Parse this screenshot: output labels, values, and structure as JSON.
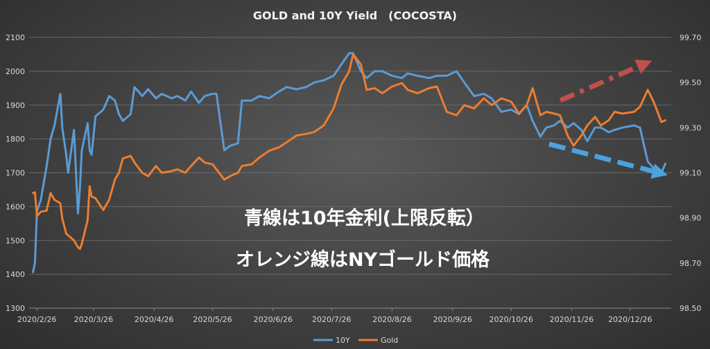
{
  "chart_data": {
    "type": "line",
    "title": "GOLD and 10Y Yield　(COCOSTA)",
    "xlabel": "",
    "ylabel": "",
    "x_ticks": [
      "2020/2/26",
      "2020/3/26",
      "2020/4/26",
      "2020/5/26",
      "2020/6/26",
      "2020/7/26",
      "2020/8/26",
      "2020/9/26",
      "2020/10/26",
      "2020/11/26",
      "2020/12/26"
    ],
    "y_left": {
      "ylim": [
        1300,
        2100
      ],
      "ticks": [
        "1300",
        "1400",
        "1500",
        "1600",
        "1700",
        "1800",
        "1900",
        "2000",
        "2100"
      ]
    },
    "y_right": {
      "ylim": [
        98.5,
        99.7
      ],
      "ticks": [
        "98.50",
        "98.70",
        "98.90",
        "99.10",
        "99.30",
        "99.50",
        "99.70"
      ]
    },
    "grid": "horizontal",
    "legend_position": "bottom",
    "series": [
      {
        "name": "10Y",
        "axis": "right",
        "color": "#5b9bd5",
        "points": [
          [
            "2020-02-24",
            98.66
          ],
          [
            "2020-02-25",
            98.7
          ],
          [
            "2020-02-26",
            98.93
          ],
          [
            "2020-02-28",
            98.98
          ],
          [
            "2020-03-02",
            99.13
          ],
          [
            "2020-03-04",
            99.25
          ],
          [
            "2020-03-06",
            99.31
          ],
          [
            "2020-03-09",
            99.45
          ],
          [
            "2020-03-10",
            99.3
          ],
          [
            "2020-03-12",
            99.18
          ],
          [
            "2020-03-13",
            99.1
          ],
          [
            "2020-03-16",
            99.29
          ],
          [
            "2020-03-18",
            98.92
          ],
          [
            "2020-03-19",
            99.03
          ],
          [
            "2020-03-20",
            99.2
          ],
          [
            "2020-03-23",
            99.32
          ],
          [
            "2020-03-24",
            99.2
          ],
          [
            "2020-03-25",
            99.18
          ],
          [
            "2020-03-27",
            99.35
          ],
          [
            "2020-03-31",
            99.38
          ],
          [
            "2020-04-03",
            99.44
          ],
          [
            "2020-04-06",
            99.42
          ],
          [
            "2020-04-08",
            99.36
          ],
          [
            "2020-04-10",
            99.33
          ],
          [
            "2020-04-14",
            99.36
          ],
          [
            "2020-04-16",
            99.48
          ],
          [
            "2020-04-20",
            99.44
          ],
          [
            "2020-04-23",
            99.47
          ],
          [
            "2020-04-27",
            99.43
          ],
          [
            "2020-04-30",
            99.45
          ],
          [
            "2020-05-05",
            99.43
          ],
          [
            "2020-05-08",
            99.44
          ],
          [
            "2020-05-12",
            99.42
          ],
          [
            "2020-05-15",
            99.46
          ],
          [
            "2020-05-19",
            99.41
          ],
          [
            "2020-05-22",
            99.44
          ],
          [
            "2020-05-26",
            99.45
          ],
          [
            "2020-05-28",
            99.45
          ],
          [
            "2020-06-01",
            99.2
          ],
          [
            "2020-06-04",
            99.22
          ],
          [
            "2020-06-08",
            99.23
          ],
          [
            "2020-06-10",
            99.42
          ],
          [
            "2020-06-15",
            99.42
          ],
          [
            "2020-06-19",
            99.44
          ],
          [
            "2020-06-24",
            99.43
          ],
          [
            "2020-06-29",
            99.46
          ],
          [
            "2020-07-03",
            99.48
          ],
          [
            "2020-07-08",
            99.47
          ],
          [
            "2020-07-13",
            99.48
          ],
          [
            "2020-07-17",
            99.5
          ],
          [
            "2020-07-22",
            99.51
          ],
          [
            "2020-07-27",
            99.53
          ],
          [
            "2020-07-31",
            99.58
          ],
          [
            "2020-08-04",
            99.63
          ],
          [
            "2020-08-06",
            99.63
          ],
          [
            "2020-08-10",
            99.55
          ],
          [
            "2020-08-13",
            99.52
          ],
          [
            "2020-08-17",
            99.55
          ],
          [
            "2020-08-21",
            99.55
          ],
          [
            "2020-08-26",
            99.53
          ],
          [
            "2020-08-31",
            99.52
          ],
          [
            "2020-09-03",
            99.54
          ],
          [
            "2020-09-08",
            99.53
          ],
          [
            "2020-09-14",
            99.52
          ],
          [
            "2020-09-18",
            99.53
          ],
          [
            "2020-09-23",
            99.53
          ],
          [
            "2020-09-28",
            99.55
          ],
          [
            "2020-10-02",
            99.5
          ],
          [
            "2020-10-07",
            99.44
          ],
          [
            "2020-10-12",
            99.45
          ],
          [
            "2020-10-16",
            99.43
          ],
          [
            "2020-10-21",
            99.37
          ],
          [
            "2020-10-26",
            99.38
          ],
          [
            "2020-10-30",
            99.36
          ],
          [
            "2020-11-03",
            99.4
          ],
          [
            "2020-11-06",
            99.33
          ],
          [
            "2020-11-10",
            99.26
          ],
          [
            "2020-11-13",
            99.3
          ],
          [
            "2020-11-17",
            99.31
          ],
          [
            "2020-11-20",
            99.33
          ],
          [
            "2020-11-24",
            99.3
          ],
          [
            "2020-11-27",
            99.32
          ],
          [
            "2020-12-01",
            99.29
          ],
          [
            "2020-12-04",
            99.24
          ],
          [
            "2020-12-08",
            99.3
          ],
          [
            "2020-12-11",
            99.3
          ],
          [
            "2020-12-15",
            99.28
          ],
          [
            "2020-12-18",
            99.29
          ],
          [
            "2020-12-22",
            99.3
          ],
          [
            "2020-12-28",
            99.31
          ],
          [
            "2020-12-31",
            99.3
          ],
          [
            "2021-01-04",
            99.15
          ],
          [
            "2021-01-07",
            99.12
          ],
          [
            "2021-01-11",
            99.1
          ],
          [
            "2021-01-13",
            99.14
          ]
        ]
      },
      {
        "name": "Gold",
        "axis": "left",
        "color": "#ed7d31",
        "points": [
          [
            "2020-02-24",
            1640
          ],
          [
            "2020-02-25",
            1642
          ],
          [
            "2020-02-26",
            1572
          ],
          [
            "2020-02-28",
            1585
          ],
          [
            "2020-03-02",
            1588
          ],
          [
            "2020-03-04",
            1640
          ],
          [
            "2020-03-06",
            1620
          ],
          [
            "2020-03-09",
            1610
          ],
          [
            "2020-03-10",
            1565
          ],
          [
            "2020-03-12",
            1520
          ],
          [
            "2020-03-13",
            1515
          ],
          [
            "2020-03-16",
            1500
          ],
          [
            "2020-03-18",
            1480
          ],
          [
            "2020-03-19",
            1475
          ],
          [
            "2020-03-20",
            1490
          ],
          [
            "2020-03-23",
            1560
          ],
          [
            "2020-03-24",
            1660
          ],
          [
            "2020-03-25",
            1630
          ],
          [
            "2020-03-27",
            1625
          ],
          [
            "2020-03-31",
            1590
          ],
          [
            "2020-04-03",
            1620
          ],
          [
            "2020-04-06",
            1680
          ],
          [
            "2020-04-08",
            1700
          ],
          [
            "2020-04-10",
            1742
          ],
          [
            "2020-04-14",
            1750
          ],
          [
            "2020-04-16",
            1730
          ],
          [
            "2020-04-20",
            1700
          ],
          [
            "2020-04-23",
            1690
          ],
          [
            "2020-04-27",
            1720
          ],
          [
            "2020-04-30",
            1700
          ],
          [
            "2020-05-05",
            1705
          ],
          [
            "2020-05-08",
            1710
          ],
          [
            "2020-05-12",
            1700
          ],
          [
            "2020-05-15",
            1720
          ],
          [
            "2020-05-19",
            1745
          ],
          [
            "2020-05-22",
            1730
          ],
          [
            "2020-05-26",
            1725
          ],
          [
            "2020-05-28",
            1710
          ],
          [
            "2020-06-01",
            1680
          ],
          [
            "2020-06-04",
            1690
          ],
          [
            "2020-06-08",
            1700
          ],
          [
            "2020-06-10",
            1720
          ],
          [
            "2020-06-15",
            1725
          ],
          [
            "2020-06-19",
            1745
          ],
          [
            "2020-06-24",
            1765
          ],
          [
            "2020-06-29",
            1775
          ],
          [
            "2020-07-03",
            1790
          ],
          [
            "2020-07-08",
            1810
          ],
          [
            "2020-07-13",
            1815
          ],
          [
            "2020-07-17",
            1820
          ],
          [
            "2020-07-22",
            1840
          ],
          [
            "2020-07-27",
            1890
          ],
          [
            "2020-07-31",
            1960
          ],
          [
            "2020-08-04",
            2000
          ],
          [
            "2020-08-06",
            2050
          ],
          [
            "2020-08-10",
            2020
          ],
          [
            "2020-08-13",
            1945
          ],
          [
            "2020-08-17",
            1950
          ],
          [
            "2020-08-21",
            1935
          ],
          [
            "2020-08-26",
            1955
          ],
          [
            "2020-08-31",
            1965
          ],
          [
            "2020-09-03",
            1945
          ],
          [
            "2020-09-08",
            1935
          ],
          [
            "2020-09-14",
            1950
          ],
          [
            "2020-09-18",
            1955
          ],
          [
            "2020-09-23",
            1880
          ],
          [
            "2020-09-28",
            1870
          ],
          [
            "2020-10-02",
            1900
          ],
          [
            "2020-10-07",
            1890
          ],
          [
            "2020-10-12",
            1920
          ],
          [
            "2020-10-16",
            1900
          ],
          [
            "2020-10-21",
            1920
          ],
          [
            "2020-10-26",
            1910
          ],
          [
            "2020-10-30",
            1875
          ],
          [
            "2020-11-03",
            1900
          ],
          [
            "2020-11-06",
            1950
          ],
          [
            "2020-11-10",
            1870
          ],
          [
            "2020-11-13",
            1880
          ],
          [
            "2020-11-17",
            1875
          ],
          [
            "2020-11-20",
            1870
          ],
          [
            "2020-11-24",
            1810
          ],
          [
            "2020-11-27",
            1780
          ],
          [
            "2020-12-01",
            1810
          ],
          [
            "2020-12-04",
            1840
          ],
          [
            "2020-12-08",
            1865
          ],
          [
            "2020-12-11",
            1840
          ],
          [
            "2020-12-15",
            1855
          ],
          [
            "2020-12-18",
            1880
          ],
          [
            "2020-12-22",
            1875
          ],
          [
            "2020-12-28",
            1880
          ],
          [
            "2020-12-31",
            1895
          ],
          [
            "2021-01-04",
            1945
          ],
          [
            "2021-01-07",
            1910
          ],
          [
            "2021-01-11",
            1850
          ],
          [
            "2021-01-13",
            1855
          ]
        ]
      }
    ]
  },
  "annotations": {
    "line1": "青線は10年金利(上限反転）",
    "line2": "オレンジ線はNYゴールド価格"
  },
  "arrows": {
    "up_color": "#c0504d",
    "down_color": "#4aa3df"
  }
}
